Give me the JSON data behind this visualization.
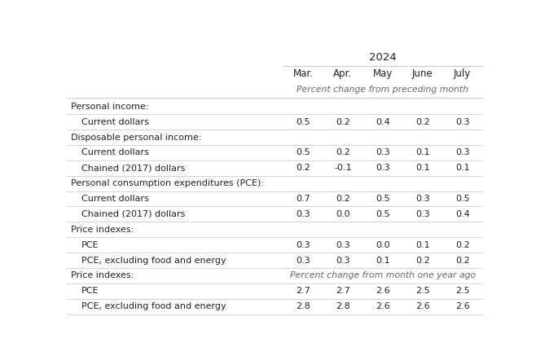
{
  "title": "2024",
  "columns": [
    "Mar.",
    "Apr.",
    "May",
    "June",
    "July"
  ],
  "subtitle1": "Percent change from preceding month",
  "subtitle2": "Percent change from month one year ago",
  "rows": [
    {
      "label": "Personal income:",
      "indent": 0,
      "header": true,
      "values": [
        null,
        null,
        null,
        null,
        null
      ]
    },
    {
      "label": "Current dollars",
      "indent": 1,
      "header": false,
      "values": [
        0.5,
        0.2,
        0.4,
        0.2,
        0.3
      ]
    },
    {
      "label": "Disposable personal income:",
      "indent": 0,
      "header": true,
      "values": [
        null,
        null,
        null,
        null,
        null
      ]
    },
    {
      "label": "Current dollars",
      "indent": 1,
      "header": false,
      "values": [
        0.5,
        0.2,
        0.3,
        0.1,
        0.3
      ]
    },
    {
      "label": "Chained (2017) dollars",
      "indent": 1,
      "header": false,
      "values": [
        0.2,
        -0.1,
        0.3,
        0.1,
        0.1
      ]
    },
    {
      "label": "Personal consumption expenditures (PCE):",
      "indent": 0,
      "header": true,
      "values": [
        null,
        null,
        null,
        null,
        null
      ]
    },
    {
      "label": "Current dollars",
      "indent": 1,
      "header": false,
      "values": [
        0.7,
        0.2,
        0.5,
        0.3,
        0.5
      ]
    },
    {
      "label": "Chained (2017) dollars",
      "indent": 1,
      "header": false,
      "values": [
        0.3,
        0.0,
        0.5,
        0.3,
        0.4
      ]
    },
    {
      "label": "Price indexes:",
      "indent": 0,
      "header": true,
      "values": [
        null,
        null,
        null,
        null,
        null
      ]
    },
    {
      "label": "PCE",
      "indent": 1,
      "header": false,
      "values": [
        0.3,
        0.3,
        0.0,
        0.1,
        0.2
      ]
    },
    {
      "label": "PCE, excluding food and energy",
      "indent": 1,
      "header": false,
      "values": [
        0.3,
        0.3,
        0.1,
        0.2,
        0.2
      ]
    },
    {
      "label": "Price indexes:",
      "indent": 0,
      "header": true,
      "values": [
        null,
        null,
        null,
        null,
        null
      ],
      "subtitle": true
    },
    {
      "label": "PCE",
      "indent": 1,
      "header": false,
      "values": [
        2.7,
        2.7,
        2.6,
        2.5,
        2.5
      ]
    },
    {
      "label": "PCE, excluding food and energy",
      "indent": 1,
      "header": false,
      "values": [
        2.8,
        2.8,
        2.6,
        2.6,
        2.6
      ]
    }
  ],
  "bg_color": "#ffffff",
  "line_color": "#cccccc",
  "text_color": "#222222"
}
